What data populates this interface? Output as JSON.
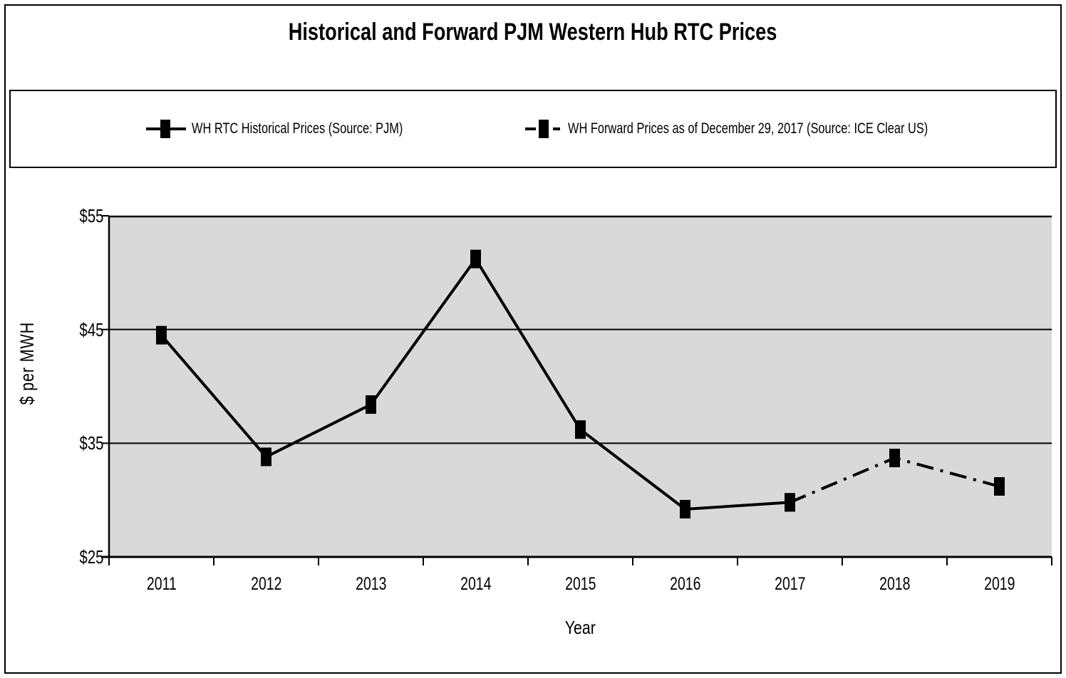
{
  "title": "Historical and Forward PJM Western Hub RTC Prices",
  "legend": {
    "items": [
      {
        "label": "WH RTC Historical Prices (Source: PJM)",
        "line_style": "solid",
        "marker": "square"
      },
      {
        "label": "WH Forward Prices as of December 29, 2017 (Source: ICE Clear US)",
        "line_style": "dash-dot",
        "marker": "square"
      }
    ]
  },
  "chart_data": {
    "type": "line",
    "title": "Historical and Forward PJM Western Hub RTC Prices",
    "xlabel": "Year",
    "ylabel": "$ per MWH",
    "x": [
      2011,
      2012,
      2013,
      2014,
      2015,
      2016,
      2017,
      2018,
      2019
    ],
    "series": [
      {
        "name": "WH RTC Historical Prices (Source: PJM)",
        "line_style": "solid",
        "marker": "square",
        "color": "#000000",
        "values": [
          44.5,
          33.8,
          38.4,
          51.2,
          36.2,
          29.2,
          29.8,
          null,
          null
        ]
      },
      {
        "name": "WH Forward Prices as of December 29, 2017 (Source: ICE Clear US)",
        "line_style": "dash-dot",
        "marker": "square",
        "color": "#000000",
        "values": [
          null,
          null,
          null,
          null,
          null,
          null,
          29.8,
          33.7,
          31.2
        ]
      }
    ],
    "ylim": [
      25,
      55
    ],
    "yticks": [
      {
        "value": 55,
        "label": "$55"
      },
      {
        "value": 45,
        "label": "$45"
      },
      {
        "value": 35,
        "label": "$35"
      },
      {
        "value": 25,
        "label": "$25"
      }
    ],
    "grid": "horizontal",
    "legend_position": "top-box",
    "plot_bg": "#d9d9d9",
    "axis_color": "#000000"
  }
}
